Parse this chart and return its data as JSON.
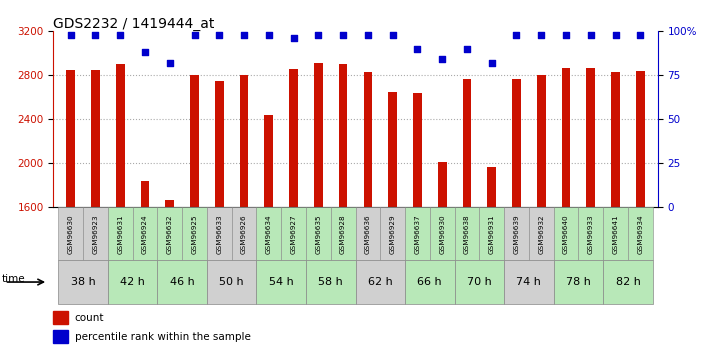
{
  "title": "GDS2232 / 1419444_at",
  "samples": [
    "GSM96630",
    "GSM96923",
    "GSM96631",
    "GSM96924",
    "GSM96632",
    "GSM96925",
    "GSM96633",
    "GSM96926",
    "GSM96634",
    "GSM96927",
    "GSM96635",
    "GSM96928",
    "GSM96636",
    "GSM96929",
    "GSM96637",
    "GSM96930",
    "GSM96638",
    "GSM96931",
    "GSM96639",
    "GSM96932",
    "GSM96640",
    "GSM96933",
    "GSM96641",
    "GSM96934"
  ],
  "counts": [
    2850,
    2850,
    2900,
    1840,
    1665,
    2800,
    2750,
    2800,
    2440,
    2855,
    2910,
    2900,
    2830,
    2650,
    2640,
    2010,
    2760,
    1960,
    2760,
    2800,
    2860,
    2860,
    2830,
    2840
  ],
  "percentile_ranks": [
    98,
    98,
    98,
    88,
    82,
    98,
    98,
    98,
    98,
    96,
    98,
    98,
    98,
    98,
    90,
    84,
    90,
    82,
    98,
    98,
    98,
    98,
    98,
    98
  ],
  "time_groups": [
    {
      "label": "38 h",
      "indices": [
        0,
        1
      ],
      "color": "#d0d0d0"
    },
    {
      "label": "42 h",
      "indices": [
        2,
        3
      ],
      "color": "#b8e8b8"
    },
    {
      "label": "46 h",
      "indices": [
        4,
        5
      ],
      "color": "#b8e8b8"
    },
    {
      "label": "50 h",
      "indices": [
        6,
        7
      ],
      "color": "#d0d0d0"
    },
    {
      "label": "54 h",
      "indices": [
        8,
        9
      ],
      "color": "#b8e8b8"
    },
    {
      "label": "58 h",
      "indices": [
        10,
        11
      ],
      "color": "#b8e8b8"
    },
    {
      "label": "62 h",
      "indices": [
        12,
        13
      ],
      "color": "#d0d0d0"
    },
    {
      "label": "66 h",
      "indices": [
        14,
        15
      ],
      "color": "#b8e8b8"
    },
    {
      "label": "70 h",
      "indices": [
        16,
        17
      ],
      "color": "#b8e8b8"
    },
    {
      "label": "74 h",
      "indices": [
        18,
        19
      ],
      "color": "#d0d0d0"
    },
    {
      "label": "78 h",
      "indices": [
        20,
        21
      ],
      "color": "#b8e8b8"
    },
    {
      "label": "82 h",
      "indices": [
        22,
        23
      ],
      "color": "#b8e8b8"
    }
  ],
  "sample_box_colors": [
    "#d0d0d0",
    "#d0d0d0",
    "#b8e8b8",
    "#b8e8b8",
    "#b8e8b8",
    "#b8e8b8",
    "#d0d0d0",
    "#d0d0d0",
    "#b8e8b8",
    "#b8e8b8",
    "#b8e8b8",
    "#b8e8b8",
    "#d0d0d0",
    "#d0d0d0",
    "#b8e8b8",
    "#b8e8b8",
    "#b8e8b8",
    "#b8e8b8",
    "#d0d0d0",
    "#d0d0d0",
    "#b8e8b8",
    "#b8e8b8",
    "#b8e8b8",
    "#b8e8b8"
  ],
  "ylim_left": [
    1600,
    3200
  ],
  "ylim_right": [
    0,
    100
  ],
  "left_ticks": [
    1600,
    2000,
    2400,
    2800,
    3200
  ],
  "right_ticks": [
    0,
    25,
    50,
    75,
    100
  ],
  "right_tick_labels": [
    "0",
    "25",
    "50",
    "75",
    "100%"
  ],
  "bar_color": "#cc1100",
  "percentile_color": "#0000cc",
  "grid_color": "#aaaaaa",
  "bar_bottom": 1600
}
